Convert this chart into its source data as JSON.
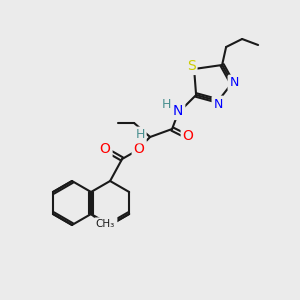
{
  "bg_color": "#ebebeb",
  "bond_color": "#1a1a1a",
  "bond_width": 1.5,
  "atom_colors": {
    "N": "#0000ff",
    "O": "#ff0000",
    "S": "#cccc00",
    "H": "#4a9090",
    "C": "#1a1a1a"
  },
  "font_size_atom": 9,
  "font_size_label": 8
}
